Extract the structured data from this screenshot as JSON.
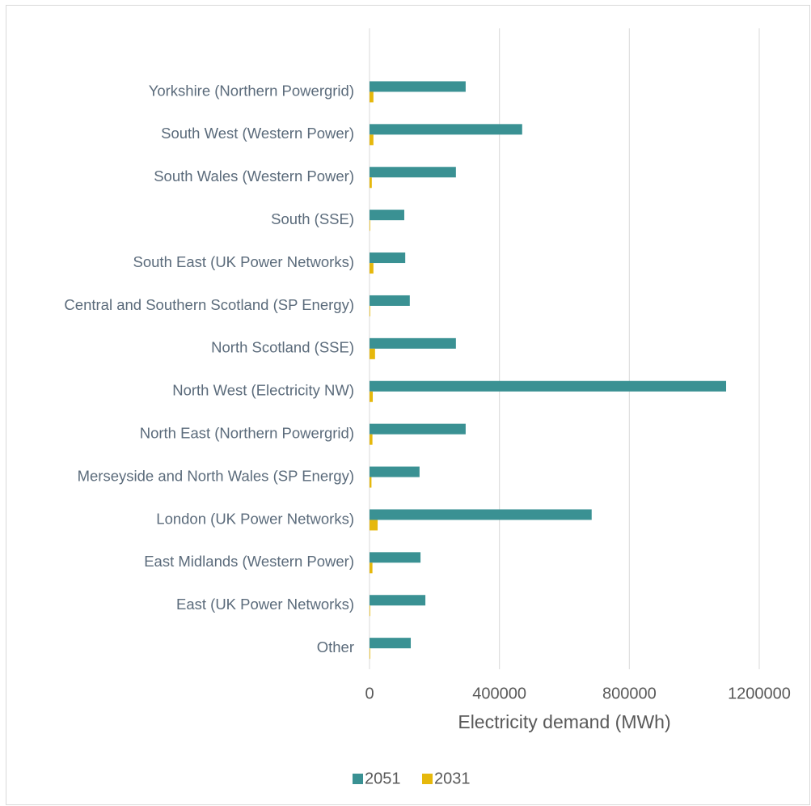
{
  "chart_data": {
    "type": "hbar",
    "x_label": "Electricity demand (MWh)",
    "categories": [
      "Yorkshire (Northern Powergrid)",
      "South West (Western Power)",
      "South Wales (Western Power)",
      "South (SSE)",
      "South East (UK Power Networks)",
      "Central and Southern Scotland (SP Energy)",
      "North Scotland (SSE)",
      "North West (Electricity NW)",
      "North East (Northern Powergrid)",
      "Merseyside and North Wales (SP Energy)",
      "London (UK Power Networks)",
      "East Midlands (Western Power)",
      "East (UK Power Networks)",
      "Other"
    ],
    "series": [
      {
        "name": "2051",
        "color": "#3a9193",
        "values": [
          296000,
          470000,
          266000,
          107000,
          110000,
          124000,
          266000,
          1098000,
          296000,
          154000,
          684000,
          157000,
          172000,
          127000
        ]
      },
      {
        "name": "2031",
        "color": "#e6b80c",
        "values": [
          12000,
          12000,
          7000,
          2000,
          12000,
          2000,
          17000,
          10000,
          9000,
          6000,
          25000,
          9000,
          2000,
          2000
        ]
      }
    ],
    "xlim": [
      0,
      1200000
    ],
    "xticks": [
      0,
      400000,
      800000,
      1200000
    ],
    "grid": true,
    "legend": "bottom"
  }
}
